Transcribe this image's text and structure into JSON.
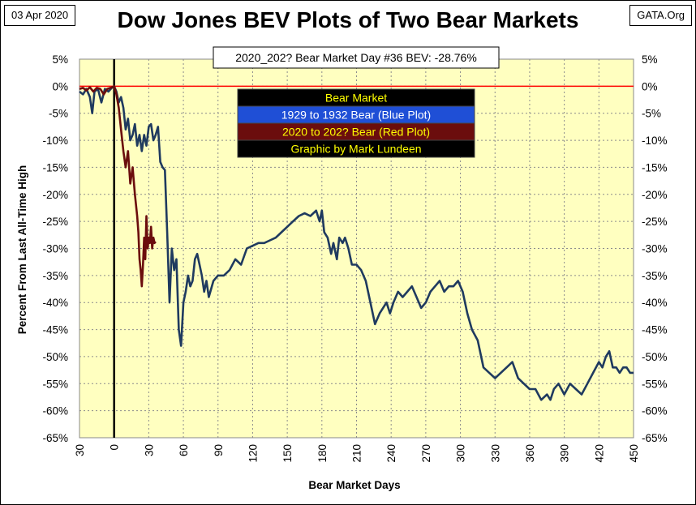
{
  "header": {
    "date": "03 Apr 2020",
    "site": "GATA.Org"
  },
  "chart_data": {
    "type": "line",
    "title": "Dow Jones BEV Plots of Two Bear Markets",
    "xlabel": "Bear Market Days",
    "ylabel": "Percent  From  Last  All-Time  High",
    "annotation": "2020_202? Bear Market Day #36 BEV: -28.76%",
    "xlim": [
      -30,
      450
    ],
    "ylim": [
      -65,
      5
    ],
    "x_ticks": [
      -30,
      0,
      30,
      60,
      90,
      120,
      150,
      180,
      210,
      240,
      270,
      300,
      330,
      360,
      390,
      420,
      450
    ],
    "x_tick_labels": [
      "30",
      "0",
      "30",
      "60",
      "90",
      "120",
      "150",
      "180",
      "210",
      "240",
      "270",
      "300",
      "330",
      "360",
      "390",
      "420",
      "450"
    ],
    "y_ticks": [
      5,
      0,
      -5,
      -10,
      -15,
      -20,
      -25,
      -30,
      -35,
      -40,
      -45,
      -50,
      -55,
      -60,
      -65
    ],
    "y_tick_labels": [
      "5%",
      "0%",
      "-5%",
      "-10%",
      "-15%",
      "-20%",
      "-25%",
      "-30%",
      "-35%",
      "-40%",
      "-45%",
      "-50%",
      "-55%",
      "-60%",
      "-65%"
    ],
    "reference_lines": {
      "horizontal_zero_color": "#ff0000",
      "vertical_zero_color": "#000000"
    },
    "legend": {
      "placement": "top-center",
      "entries": [
        {
          "label": "Bear Market",
          "bg": "#000000",
          "fg": "#ffff00"
        },
        {
          "label": "1929 to 1932 Bear (Blue Plot)",
          "bg": "#1f4fd6",
          "fg": "#ffffff"
        },
        {
          "label": "2020 to 202? Bear (Red Plot)",
          "bg": "#6b0d0d",
          "fg": "#ffff00"
        },
        {
          "label": "Graphic by Mark Lundeen",
          "bg": "#000000",
          "fg": "#ffff00"
        }
      ]
    },
    "colors": {
      "plot_bg": "#ffffc0",
      "grid": "#8c8c8c",
      "blue_series": "#1f3a5f",
      "red_series": "#6b0d0d"
    },
    "series": [
      {
        "name": "1929 to 1932 Bear (Blue Plot)",
        "color": "#1f3a5f",
        "x": [
          -30,
          -27,
          -24,
          -21,
          -19,
          -17,
          -14,
          -11,
          -8,
          -5,
          -2,
          0,
          2,
          4,
          6,
          8,
          10,
          12,
          14,
          16,
          18,
          20,
          22,
          24,
          26,
          28,
          30,
          32,
          34,
          36,
          38,
          40,
          42,
          44,
          46,
          48,
          50,
          52,
          54,
          56,
          58,
          60,
          62,
          64,
          66,
          68,
          70,
          72,
          74,
          76,
          78,
          80,
          82,
          86,
          90,
          95,
          100,
          105,
          110,
          115,
          120,
          125,
          130,
          135,
          140,
          145,
          150,
          155,
          160,
          165,
          170,
          175,
          178,
          180,
          182,
          185,
          188,
          190,
          193,
          195,
          198,
          200,
          203,
          206,
          210,
          214,
          218,
          222,
          226,
          230,
          233,
          236,
          239,
          242,
          246,
          250,
          254,
          258,
          262,
          266,
          270,
          274,
          278,
          282,
          286,
          290,
          294,
          298,
          302,
          306,
          310,
          315,
          320,
          325,
          330,
          335,
          340,
          345,
          350,
          355,
          360,
          365,
          370,
          375,
          378,
          381,
          385,
          390,
          395,
          400,
          405,
          410,
          415,
          420,
          423,
          426,
          429,
          432,
          435,
          438,
          441,
          444,
          447,
          450
        ],
        "values": [
          -1,
          -1.5,
          -0.5,
          -2,
          -5,
          -1,
          -0.5,
          -3,
          -0.5,
          -1,
          -0.3,
          0,
          -1,
          -3,
          -2,
          -4,
          -8,
          -6,
          -10,
          -9,
          -7,
          -11,
          -9,
          -12,
          -9,
          -11,
          -7.5,
          -7,
          -10,
          -9,
          -7.5,
          -14,
          -15,
          -15.5,
          -27,
          -40,
          -30,
          -34,
          -32,
          -45,
          -48,
          -40,
          -38,
          -35,
          -37,
          -36,
          -32,
          -31,
          -33,
          -35,
          -38,
          -36,
          -39,
          -36,
          -35,
          -35,
          -34,
          -32,
          -33,
          -30,
          -29.5,
          -29,
          -29,
          -28.5,
          -28,
          -27,
          -26,
          -25,
          -24,
          -23.5,
          -24,
          -23,
          -25,
          -23,
          -27,
          -28,
          -31,
          -29,
          -32,
          -28,
          -29,
          -28,
          -30,
          -33,
          -33,
          -34,
          -36,
          -40,
          -44,
          -42,
          -41,
          -40,
          -42,
          -40,
          -38,
          -39,
          -38,
          -37,
          -39,
          -41,
          -40,
          -38,
          -37,
          -36,
          -38,
          -37,
          -37,
          -36,
          -38,
          -42,
          -45,
          -47,
          -52,
          -53,
          -54,
          -53,
          -52,
          -51,
          -54,
          -55,
          -56,
          -56,
          -58,
          -57,
          -58,
          -56,
          -55,
          -57,
          -55,
          -56,
          -57,
          -55,
          -53,
          -51,
          -52,
          -50,
          -49,
          -52,
          -52,
          -53,
          -52,
          -52,
          -53,
          -53
        ],
        "connect": true
      },
      {
        "name": "2020 to 202? Bear (Red Plot)",
        "color": "#6b0d0d",
        "x": [
          -30,
          -27,
          -24,
          -21,
          -18,
          -15,
          -12,
          -9,
          -6,
          -3,
          0,
          2,
          4,
          6,
          8,
          10,
          12,
          14,
          16,
          18,
          19,
          20,
          21,
          22,
          23,
          24,
          25,
          26,
          27,
          28,
          29,
          30,
          31,
          32,
          33,
          34,
          35,
          36
        ],
        "values": [
          -0.5,
          -0.3,
          -0.8,
          -0.2,
          -1,
          -0.3,
          -0.5,
          -1.5,
          -0.5,
          -0.3,
          0,
          -1.5,
          -4,
          -8,
          -12,
          -15,
          -12,
          -18,
          -15,
          -20,
          -22,
          -24,
          -27,
          -32,
          -34,
          -37,
          -33,
          -28,
          -32,
          -24,
          -30,
          -28,
          -29,
          -26,
          -30,
          -28,
          -29,
          -28.76
        ]
      }
    ]
  }
}
